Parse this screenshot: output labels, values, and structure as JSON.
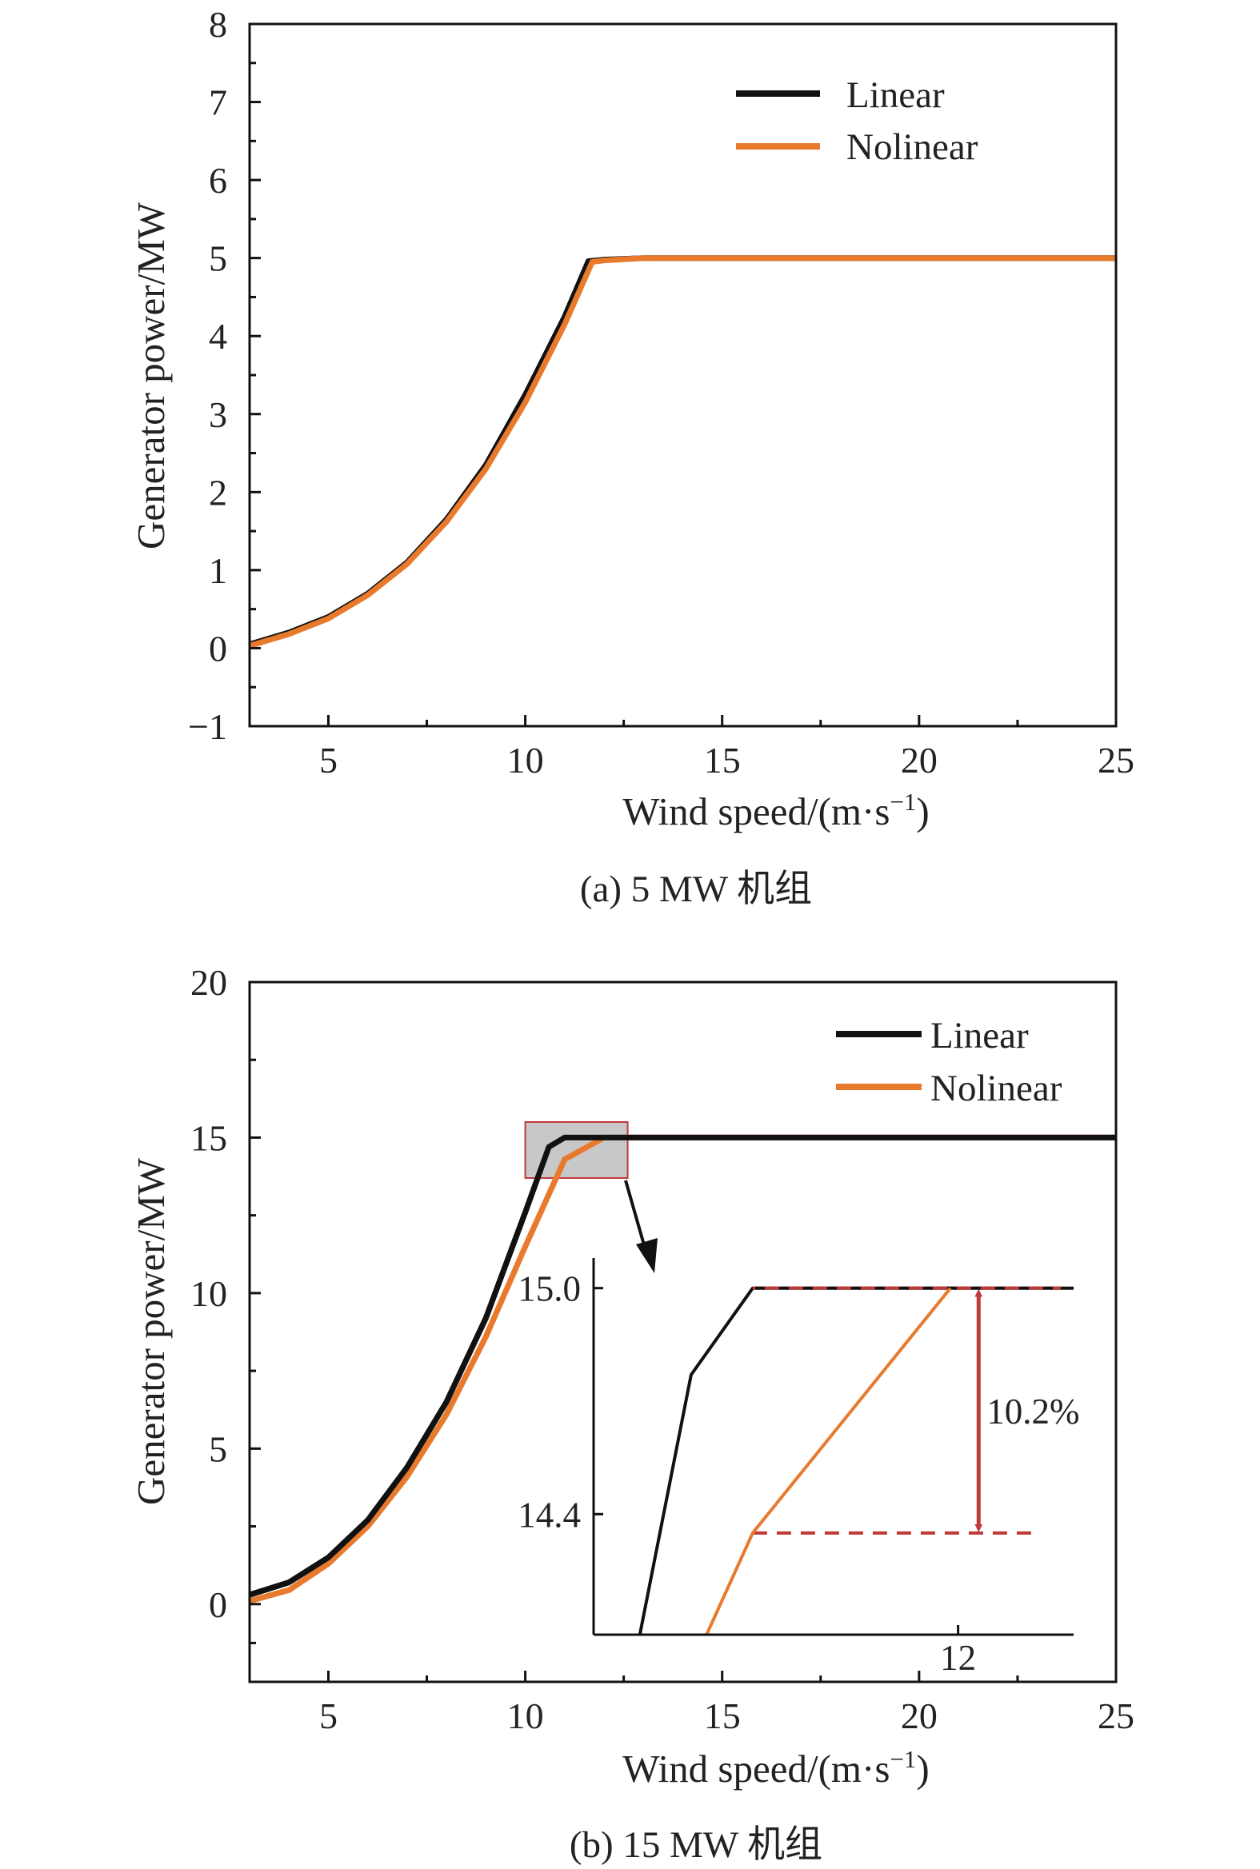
{
  "figure": {
    "chart_data": [
      {
        "id": "a",
        "type": "line",
        "caption": "(a) 5 MW 机组",
        "xlabel": "Wind speed/(m·s",
        "xlabel_sup": "−1",
        "xlabel_tail": ")",
        "ylabel": "Generator power/MW",
        "xlim": [
          3,
          25
        ],
        "ylim": [
          -1,
          8
        ],
        "xticks": [
          5,
          10,
          15,
          20,
          25
        ],
        "xtick_labels": [
          "5",
          "10",
          "15",
          "20",
          "25"
        ],
        "yticks": [
          -1,
          0,
          1,
          2,
          3,
          4,
          5,
          6,
          7,
          8
        ],
        "ytick_labels": [
          "−1",
          "0",
          "1",
          "2",
          "3",
          "4",
          "5",
          "6",
          "7",
          "8"
        ],
        "legend_position": "top-right",
        "series": [
          {
            "name": "Linear",
            "color": "#111111",
            "x": [
              3,
              4,
              5,
              6,
              7,
              8,
              9,
              10,
              11,
              11.6,
              12,
              13,
              14,
              15,
              16,
              17,
              18,
              19,
              20,
              21,
              22,
              23,
              24,
              25
            ],
            "y": [
              0.05,
              0.2,
              0.4,
              0.7,
              1.1,
              1.65,
              2.35,
              3.25,
              4.25,
              4.96,
              4.98,
              5.0,
              5.0,
              5.0,
              5.0,
              5.0,
              5.0,
              5.0,
              5.0,
              5.0,
              5.0,
              5.0,
              5.0,
              5.0
            ]
          },
          {
            "name": "Nolinear",
            "color": "#E87A2E",
            "x": [
              3,
              4,
              5,
              6,
              7,
              8,
              9,
              10,
              11,
              11.7,
              12,
              13,
              14,
              15,
              16,
              17,
              18,
              19,
              20,
              21,
              22,
              23,
              24,
              25
            ],
            "y": [
              0.03,
              0.18,
              0.38,
              0.68,
              1.08,
              1.62,
              2.3,
              3.15,
              4.15,
              4.95,
              4.97,
              5.0,
              5.0,
              5.0,
              5.0,
              5.0,
              5.0,
              5.0,
              5.0,
              5.0,
              5.0,
              5.0,
              5.0,
              5.0
            ]
          }
        ]
      },
      {
        "id": "b",
        "type": "line",
        "caption": "(b) 15 MW 机组",
        "xlabel": "Wind speed/(m·s",
        "xlabel_sup": "−1",
        "xlabel_tail": ")",
        "ylabel": "Generator power/MW",
        "xlim": [
          3,
          25
        ],
        "ylim": [
          -2.5,
          20
        ],
        "xticks": [
          5,
          10,
          15,
          20,
          25
        ],
        "xtick_labels": [
          "5",
          "10",
          "15",
          "20",
          "25"
        ],
        "yticks": [
          0,
          5,
          10,
          15,
          20
        ],
        "ytick_labels": [
          "0",
          "5",
          "10",
          "15",
          "20"
        ],
        "legend_position": "top-right",
        "series": [
          {
            "name": "Linear",
            "color": "#111111",
            "x": [
              3,
              4,
              5,
              6,
              7,
              8,
              9,
              10,
              10.6,
              11,
              11.5,
              12,
              13,
              14,
              15,
              16,
              17,
              18,
              19,
              20,
              21,
              22,
              23,
              24,
              25
            ],
            "y": [
              0.3,
              0.7,
              1.5,
              2.7,
              4.4,
              6.5,
              9.2,
              12.6,
              14.7,
              15.0,
              15.0,
              15.0,
              15.0,
              15.0,
              15.0,
              15.0,
              15.0,
              15.0,
              15.0,
              15.0,
              15.0,
              15.0,
              15.0,
              15.0,
              15.0
            ]
          },
          {
            "name": "Nolinear",
            "color": "#E87A2E",
            "x": [
              3,
              4,
              5,
              6,
              7,
              8,
              9,
              10,
              11,
              12,
              12.5,
              13,
              14,
              15,
              16,
              17,
              18,
              19,
              20,
              21,
              22,
              23,
              24,
              25
            ],
            "y": [
              0.1,
              0.45,
              1.3,
              2.5,
              4.1,
              6.1,
              8.6,
              11.5,
              14.3,
              15.0,
              15.0,
              15.0,
              15.0,
              15.0,
              15.0,
              15.0,
              15.0,
              15.0,
              15.0,
              15.0,
              15.0,
              15.0,
              15.0,
              15.0
            ]
          }
        ],
        "zoom_box": {
          "x": [
            10,
            12.6
          ],
          "y": [
            13.7,
            15.5
          ],
          "color": "#C0393B"
        },
        "inset": {
          "xlim": [
            10.58,
            12.45
          ],
          "ylim": [
            14.08,
            15.08
          ],
          "ytick_labels": [
            "15.0",
            "14.4"
          ],
          "yticks": [
            15.0,
            14.4
          ],
          "xtick_labels": [
            "12"
          ],
          "xticks": [
            12
          ],
          "series": [
            {
              "name": "Linear",
              "color": "#111111",
              "x": [
                10.76,
                10.96,
                11.2,
                12.45
              ],
              "y": [
                14.08,
                14.77,
                15.0,
                15.0
              ]
            },
            {
              "name": "Nolinear",
              "color": "#E87A2E",
              "x": [
                11.02,
                11.2,
                11.97
              ],
              "y": [
                14.08,
                14.35,
                15.0
              ]
            }
          ],
          "ref_top": {
            "x": [
              11.2,
              12.4
            ],
            "y": 15.0,
            "color": "#C0393B"
          },
          "ref_bottom": {
            "x": [
              11.2,
              12.3
            ],
            "y": 14.35,
            "color": "#C0393B"
          },
          "arrow_x": 12.08,
          "annotation": "10.2%"
        }
      }
    ]
  }
}
